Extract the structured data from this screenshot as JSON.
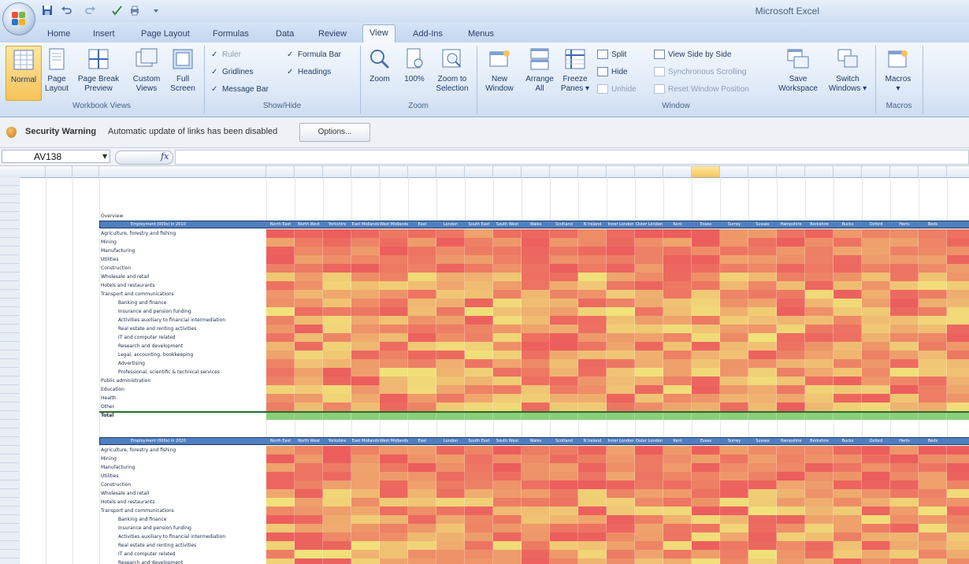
{
  "app": {
    "title": "Microsoft Excel"
  },
  "colors": {
    "accent": "#4f7fbf",
    "selected": "#f6c35a",
    "heat_low": "#f1e27a",
    "heat_high": "#ec5d5d",
    "total": "#8bcf7a"
  },
  "tabs": [
    {
      "label": "Home"
    },
    {
      "label": "Insert"
    },
    {
      "label": "Page Layout"
    },
    {
      "label": "Formulas"
    },
    {
      "label": "Data"
    },
    {
      "label": "Review"
    },
    {
      "label": "View",
      "active": true
    },
    {
      "label": "Add-Ins"
    },
    {
      "label": "Menus"
    }
  ],
  "ribbon": {
    "workbook_views": {
      "label": "Workbook Views",
      "buttons": [
        {
          "label": "Normal",
          "pressed": true
        },
        {
          "label": "Page\nLayout"
        },
        {
          "label": "Page Break\nPreview"
        },
        {
          "label": "Custom\nViews"
        },
        {
          "label": "Full\nScreen"
        }
      ]
    },
    "show_hide": {
      "label": "Show/Hide",
      "items": [
        {
          "label": "Ruler",
          "checked": true,
          "disabled": true
        },
        {
          "label": "Formula Bar",
          "checked": true
        },
        {
          "label": "Gridlines",
          "checked": true
        },
        {
          "label": "Headings",
          "checked": true
        },
        {
          "label": "Message Bar",
          "checked": true
        }
      ]
    },
    "zoom": {
      "label": "Zoom",
      "buttons": [
        {
          "label": "Zoom"
        },
        {
          "label": "100%"
        },
        {
          "label": "Zoom to\nSelection"
        }
      ]
    },
    "window": {
      "label": "Window",
      "buttons": [
        {
          "label": "New\nWindow"
        },
        {
          "label": "Arrange\nAll"
        },
        {
          "label": "Freeze\nPanes ▾"
        }
      ],
      "small": [
        {
          "label": "Split"
        },
        {
          "label": "Hide"
        },
        {
          "label": "Unhide",
          "disabled": true
        }
      ],
      "side": [
        {
          "label": "View Side by Side"
        },
        {
          "label": "Synchronous Scrolling",
          "disabled": true
        },
        {
          "label": "Reset Window Position",
          "disabled": true
        }
      ],
      "buttons2": [
        {
          "label": "Save\nWorkspace"
        },
        {
          "label": "Switch\nWindows ▾"
        }
      ]
    },
    "macros": {
      "label": "Macros",
      "buttons": [
        {
          "label": "Macros\n▾"
        }
      ]
    }
  },
  "message_bar": {
    "title": "Security Warning",
    "text": "Automatic update of links has been disabled",
    "options_label": "Options..."
  },
  "formula_bar": {
    "name_box": "AV138",
    "fx": "fx"
  },
  "sheet": {
    "selected_column_index": 15,
    "tables": [
      {
        "title": "Employment (000s) in 2010",
        "rows": [
          "Agriculture, forestry and fishing",
          "Mining",
          "Manufacturing",
          "Utilities",
          "Construction",
          "Wholesale and retail",
          "Hotels and restaurants",
          "Transport and communications",
          "Banking and finance",
          "Insurance and pension funding",
          "Activities auxiliary to financial intermediation",
          "Real estate and renting activities",
          "IT and computer related",
          "Research and development",
          "Legal, accounting, bookkeeping",
          "Advertising",
          "Professional, scientific & technical services",
          "Public administration",
          "Education",
          "Health",
          "Other",
          "Total"
        ]
      },
      {
        "title": "Employment (000s) in 2020",
        "rows": [
          "Agriculture, forestry and fishing",
          "Mining",
          "Manufacturing",
          "Utilities",
          "Construction",
          "Wholesale and retail",
          "Hotels and restaurants",
          "Transport and communications",
          "Banking and finance",
          "Insurance and pension funding",
          "Activities auxiliary to financial intermediation",
          "Real estate and renting activities",
          "IT and computer related",
          "Research and development"
        ]
      }
    ],
    "subheading": "Overview",
    "column_headers": [
      "North East",
      "North West",
      "Yorkshire",
      "East Midlands",
      "West Midlands",
      "East",
      "London",
      "South East",
      "South West",
      "Wales",
      "Scotland",
      "N Ireland",
      "Inner London",
      "Outer London",
      "Kent",
      "Essex",
      "Surrey",
      "Sussex",
      "Hampshire",
      "Berkshire",
      "Bucks",
      "Oxford",
      "Herts",
      "Beds"
    ]
  }
}
